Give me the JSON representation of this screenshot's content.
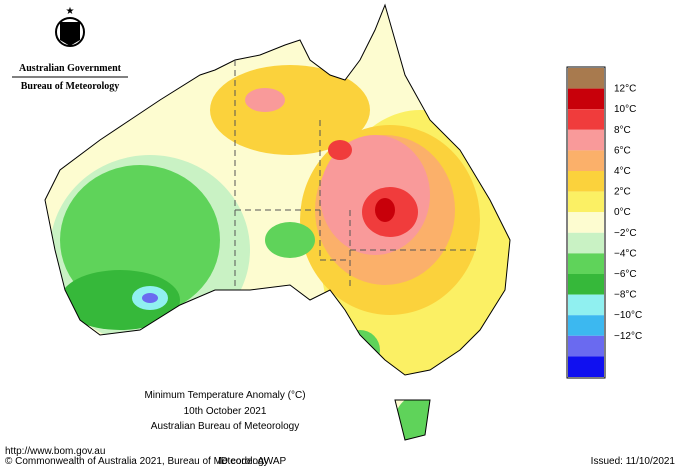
{
  "header": {
    "government": "Australian Government",
    "agency": "Bureau of Meteorology"
  },
  "map": {
    "title": "Minimum Temperature Anomaly (°C)",
    "date": "10th October 2021",
    "source": "Australian Bureau of Meteorology"
  },
  "legend": {
    "labels": [
      "12°C",
      "10°C",
      "8°C",
      "6°C",
      "4°C",
      "2°C",
      "0°C",
      "−2°C",
      "−4°C",
      "−6°C",
      "−8°C",
      "−10°C",
      "−12°C"
    ],
    "colors": [
      "#a87a4e",
      "#c8000a",
      "#f03c3c",
      "#f99a9a",
      "#fbb06a",
      "#fbd23c",
      "#fbf064",
      "#fdfcd0",
      "#c9f2c4",
      "#5fd35a",
      "#36b83a",
      "#90f0f0",
      "#3cb8f0",
      "#6a6af0",
      "#1010f0"
    ]
  },
  "footer": {
    "url": "http://www.bom.gov.au",
    "copyright": "© Commonwealth of Australia 2021, Bureau of Meteorology",
    "id_code": "ID code: AWAP",
    "issued": "Issued: 11/10/2021"
  }
}
